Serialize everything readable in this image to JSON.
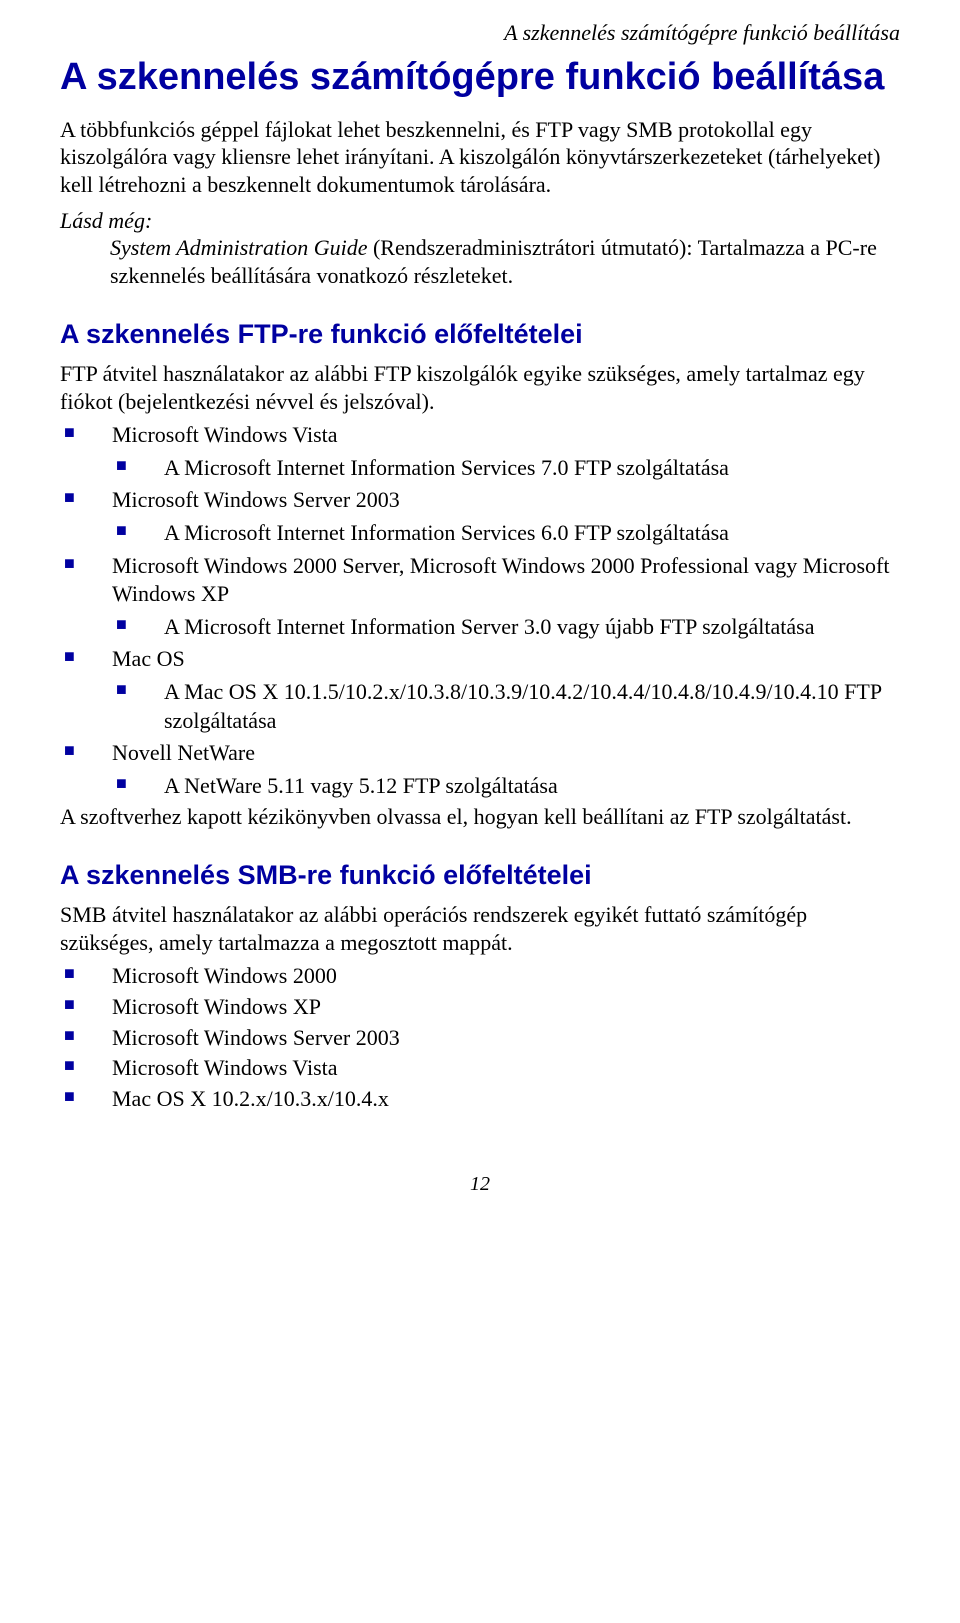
{
  "colors": {
    "heading": "#0000a0",
    "bullet": "#0000a0",
    "text": "#000000",
    "background": "#ffffff"
  },
  "typography": {
    "body_font": "Times New Roman",
    "heading_font": "Arial",
    "body_size_pt": 16,
    "h1_size_pt": 28,
    "h2_size_pt": 20
  },
  "header": {
    "running_title": "A szkennelés számítógépre funkció beállítása"
  },
  "h1": "A szkennelés számítógépre funkció beállítása",
  "intro": {
    "p1": "A többfunkciós géppel fájlokat lehet beszkennelni, és FTP vagy SMB protokollal egy kiszolgálóra vagy kliensre lehet irányítani. A kiszolgálón könyvtárszerkezeteket (tárhelyeket) kell létrehozni a beszkennelt dokumentumok tárolására."
  },
  "see_also": {
    "label": "Lásd még:",
    "title_italic": "System Administration Guide",
    "rest": " (Rendszeradminisztrátori útmutató): Tartalmazza a PC-re szkennelés beállítására vonatkozó részleteket."
  },
  "ftp": {
    "heading": "A szkennelés FTP-re funkció előfeltételei",
    "intro": "FTP átvitel használatakor az alábbi FTP kiszolgálók egyike szükséges, amely tartalmaz egy fiókot (bejelentkezési névvel és jelszóval).",
    "items": [
      {
        "label": "Microsoft Windows Vista",
        "sub": [
          "A Microsoft Internet Information Services 7.0 FTP szolgáltatása"
        ]
      },
      {
        "label": "Microsoft Windows Server 2003",
        "sub": [
          "A Microsoft Internet Information Services 6.0 FTP szolgáltatása"
        ]
      },
      {
        "label": "Microsoft Windows 2000 Server, Microsoft Windows 2000 Professional vagy Microsoft Windows XP",
        "sub": [
          "A Microsoft Internet Information Server 3.0 vagy újabb FTP szolgáltatása"
        ]
      },
      {
        "label": "Mac OS",
        "sub": [
          "A Mac OS X 10.1.5/10.2.x/10.3.8/10.3.9/10.4.2/10.4.4/10.4.8/10.4.9/10.4.10 FTP szolgáltatása"
        ]
      },
      {
        "label": "Novell NetWare",
        "sub": [
          "A NetWare 5.11 vagy 5.12 FTP szolgáltatása"
        ]
      }
    ],
    "footer": "A szoftverhez kapott kézikönyvben olvassa el, hogyan kell beállítani az FTP szolgáltatást."
  },
  "smb": {
    "heading": "A szkennelés SMB-re funkció előfeltételei",
    "intro": "SMB átvitel használatakor az alábbi operációs rendszerek egyikét futtató számítógép szükséges, amely tartalmazza a megosztott mappát.",
    "items": [
      "Microsoft Windows 2000",
      "Microsoft Windows XP",
      "Microsoft Windows Server 2003",
      "Microsoft Windows Vista",
      "Mac OS X 10.2.x/10.3.x/10.4.x"
    ]
  },
  "page_number": "12"
}
